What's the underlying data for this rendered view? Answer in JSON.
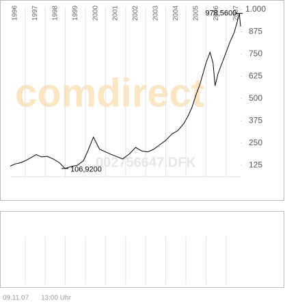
{
  "chart_data": {
    "type": "line",
    "series": [
      {
        "name": "002756647.DFK",
        "color": "#000000",
        "x": [
          1996.26,
          1996.5,
          1996.8,
          1997.0,
          1997.3,
          1997.55,
          1997.8,
          1998.1,
          1998.4,
          1998.7,
          1998.98,
          1999.3,
          1999.6,
          1999.9,
          2000.1,
          2000.4,
          2000.7,
          2001.0,
          2001.3,
          2001.6,
          2001.85,
          2002.2,
          2002.5,
          2002.8,
          2003.1,
          2003.4,
          2003.7,
          2004.0,
          2004.3,
          2004.6,
          2004.9,
          2005.1,
          2005.3,
          2005.5,
          2005.7,
          2005.85,
          2006.0,
          2006.2,
          2006.35,
          2006.45,
          2006.6,
          2006.8,
          2007.0,
          2007.2,
          2007.4,
          2007.55,
          2007.66,
          2007.72
        ],
        "values": [
          120,
          132,
          140,
          150,
          168,
          185,
          172,
          175,
          160,
          140,
          106.92,
          118,
          125,
          150,
          200,
          283,
          215,
          200,
          185,
          172,
          160,
          190,
          225,
          205,
          200,
          215,
          240,
          265,
          300,
          320,
          360,
          400,
          450,
          520,
          580,
          640,
          700,
          760,
          700,
          572,
          640,
          700,
          760,
          820,
          870,
          930,
          978.56,
          905
        ]
      }
    ],
    "xlim": [
      1996.26,
      2007.72
    ],
    "xticks": [
      1996,
      1997,
      1998,
      1999,
      2000,
      2001,
      2002,
      2003,
      2004,
      2005,
      2006,
      2007
    ],
    "ylim": [
      60,
      1000
    ],
    "yticks": [
      {
        "value": 1000,
        "label": "1.000"
      },
      875,
      750,
      625,
      500,
      375,
      250,
      125
    ],
    "grid": true,
    "annotations": [
      "106,9200",
      "978,5600"
    ],
    "watermark": "comdirect",
    "date": "09.11.07",
    "time": "13:00 Uhr"
  }
}
